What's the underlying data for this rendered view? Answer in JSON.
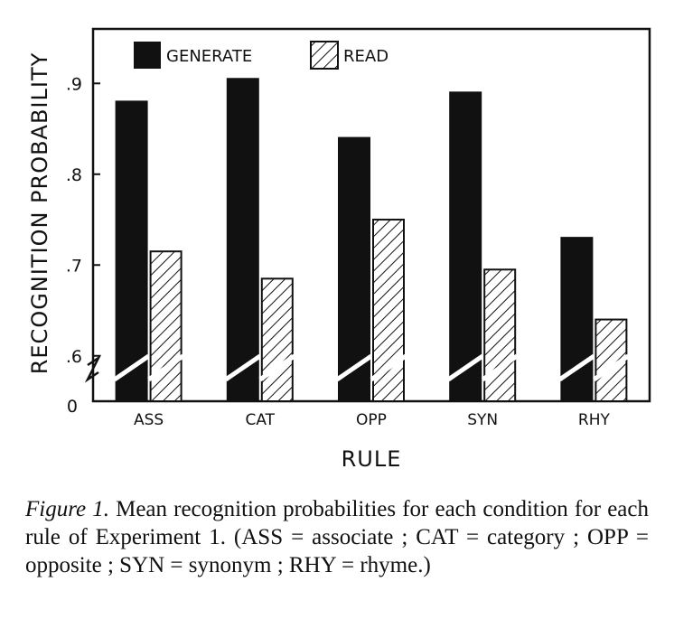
{
  "chart_data": {
    "type": "bar",
    "categories": [
      "ASS",
      "CAT",
      "OPP",
      "SYN",
      "RHY"
    ],
    "series": [
      {
        "name": "GENERATE",
        "values": [
          0.88,
          0.905,
          0.84,
          0.89,
          0.73
        ],
        "style": "solid",
        "color": "#111111"
      },
      {
        "name": "READ",
        "values": [
          0.715,
          0.685,
          0.75,
          0.695,
          0.64
        ],
        "style": "hatched",
        "color": "#111111"
      }
    ],
    "xlabel": "RULE",
    "ylabel": "RECOGNITION PROBABILITY",
    "ylim": [
      0.55,
      0.96
    ],
    "axis_break": true,
    "y_ticks": [
      0.6,
      0.7,
      0.8,
      0.9
    ],
    "y_tick_labels": [
      ".6",
      ".7",
      ".8",
      ".9"
    ],
    "y_origin_label": "0",
    "grid": false,
    "legend_position": "top-left"
  },
  "caption": {
    "lead": "Figure 1.",
    "text": " Mean recognition probabilities for each condition for each rule of Experiment 1. (ASS = associate ; CAT = category ; OPP = opposite ; SYN = synonym ; RHY = rhyme.)"
  }
}
